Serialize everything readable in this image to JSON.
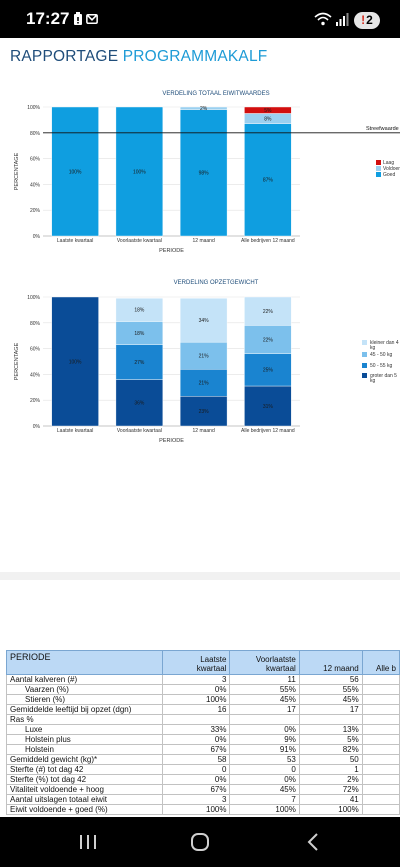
{
  "status_bar": {
    "time": "17:27",
    "notification_count": "2"
  },
  "header": {
    "title_part1": "RAPPORTAGE",
    "title_part2": "PROGRAMMAKALF"
  },
  "colors": {
    "accent": "#1d9bd6",
    "title_dark": "#1f4d7a",
    "bar_goed": "#0f9ee0",
    "bar_laag": "#d20f0f",
    "bar_voldoende": "#9bd0f0"
  },
  "chart_data": [
    {
      "type": "bar",
      "stacked": true,
      "title": "VERDELING TOTAAL EIWITWAARDES",
      "xlabel": "PERIODE",
      "ylabel": "PERCENTAGE",
      "ylim": [
        0,
        100
      ],
      "yticks": [
        "0%",
        "20%",
        "40%",
        "60%",
        "80%",
        "100%"
      ],
      "categories": [
        "Laatste kwartaal",
        "Voorlaatste kwartaal",
        "12 maand",
        "Alle bedrijven 12 maand"
      ],
      "series": [
        {
          "name": "Goed",
          "color": "#0f9ee0",
          "values": [
            100,
            100,
            98,
            87
          ],
          "labels": [
            "100%",
            "100%",
            "98%",
            "87%"
          ]
        },
        {
          "name": "Voldoende",
          "color": "#9bd0f0",
          "values": [
            0,
            0,
            2,
            8
          ],
          "labels": [
            "",
            "",
            "2%",
            "8%"
          ]
        },
        {
          "name": "Laag",
          "color": "#d20f0f",
          "values": [
            0,
            0,
            0,
            5
          ],
          "labels": [
            "",
            "",
            "",
            "5%"
          ]
        }
      ],
      "reference_line": {
        "value": 80,
        "label": "Streefwaarde"
      },
      "legend_position": "right",
      "legend_order": [
        "Laag",
        "Voldoende",
        "Goed"
      ],
      "legend_labels": [
        "Laag",
        "Voldoen",
        "Goed"
      ]
    },
    {
      "type": "bar",
      "stacked": true,
      "title": "VERDELING OPZETGEWICHT",
      "xlabel": "PERIODE",
      "ylabel": "PERCENTAGE",
      "ylim": [
        0,
        100
      ],
      "yticks": [
        "0%",
        "20%",
        "40%",
        "60%",
        "80%",
        "100%"
      ],
      "categories": [
        "Laatste kwartaal",
        "Voorlaatste kwartaal",
        "12 maand",
        "Alle bedrijven 12 maand"
      ],
      "series": [
        {
          "name": "groter dan 55 kg",
          "color": "#0a4c97",
          "values": [
            100,
            36,
            23,
            31
          ],
          "labels": [
            "100%",
            "36%",
            "23%",
            "31%"
          ]
        },
        {
          "name": "50 - 55 kg",
          "color": "#1a84d0",
          "values": [
            0,
            27,
            21,
            25
          ],
          "labels": [
            "",
            "27%",
            "21%",
            "25%"
          ]
        },
        {
          "name": "45 - 50 kg",
          "color": "#7cc0ec",
          "values": [
            0,
            18,
            21,
            22
          ],
          "labels": [
            "",
            "18%",
            "21%",
            "22%"
          ]
        },
        {
          "name": "kleiner dan 45 kg",
          "color": "#c4e3f8",
          "values": [
            0,
            18,
            34,
            22
          ],
          "labels": [
            "",
            "18%",
            "34%",
            "22%"
          ]
        }
      ],
      "legend_position": "right",
      "legend_labels": [
        [
          "kleiner dan 4",
          "kg"
        ],
        [
          "45 - 50 kg"
        ],
        [
          "50 - 55 kg"
        ],
        [
          "groter dan 5",
          "kg"
        ]
      ]
    }
  ],
  "table": {
    "headers": [
      "PERIODE",
      "Laatste kwartaal",
      "Voorlaatste kwartaal",
      "12 maand",
      "Alle b"
    ],
    "header_lines": [
      [
        "PERIODE"
      ],
      [
        "Laatste",
        "kwartaal"
      ],
      [
        "Voorlaatste",
        "kwartaal"
      ],
      [
        "12 maand"
      ],
      [
        "Alle b"
      ]
    ],
    "rows": [
      {
        "label": "Aantal kalveren (#)",
        "indent": false,
        "values": [
          "3",
          "11",
          "56",
          ""
        ]
      },
      {
        "label": "Vaarzen (%)",
        "indent": true,
        "values": [
          "0%",
          "55%",
          "55%",
          ""
        ]
      },
      {
        "label": "Stieren (%)",
        "indent": true,
        "values": [
          "100%",
          "45%",
          "45%",
          ""
        ]
      },
      {
        "label": "Gemiddelde leeftijd bij opzet (dgn)",
        "indent": false,
        "values": [
          "16",
          "17",
          "17",
          ""
        ]
      },
      {
        "label": "Ras %",
        "indent": false,
        "values": [
          "",
          "",
          "",
          ""
        ]
      },
      {
        "label": "Luxe",
        "indent": true,
        "values": [
          "33%",
          "0%",
          "13%",
          ""
        ]
      },
      {
        "label": "Holstein plus",
        "indent": true,
        "values": [
          "0%",
          "9%",
          "5%",
          ""
        ]
      },
      {
        "label": "Holstein",
        "indent": true,
        "values": [
          "67%",
          "91%",
          "82%",
          ""
        ]
      },
      {
        "label": "Gemiddeld gewicht (kg)*",
        "indent": false,
        "values": [
          "58",
          "53",
          "50",
          ""
        ]
      },
      {
        "label": "Sterfte (#) tot dag 42",
        "indent": false,
        "values": [
          "0",
          "0",
          "1",
          ""
        ]
      },
      {
        "label": "Sterfte (%) tot dag 42",
        "indent": false,
        "values": [
          "0%",
          "0%",
          "2%",
          ""
        ]
      },
      {
        "label": "Vitaliteit voldoende + hoog",
        "indent": false,
        "values": [
          "67%",
          "45%",
          "72%",
          ""
        ]
      },
      {
        "label": "Aantal uitslagen totaal eiwit",
        "indent": false,
        "values": [
          "3",
          "7",
          "41",
          ""
        ]
      },
      {
        "label": "Eiwit voldoende + goed (%)",
        "indent": false,
        "values": [
          "100%",
          "100%",
          "100%",
          ""
        ]
      }
    ]
  },
  "nav_bar": {
    "buttons": [
      "recent-apps",
      "home",
      "back"
    ]
  }
}
